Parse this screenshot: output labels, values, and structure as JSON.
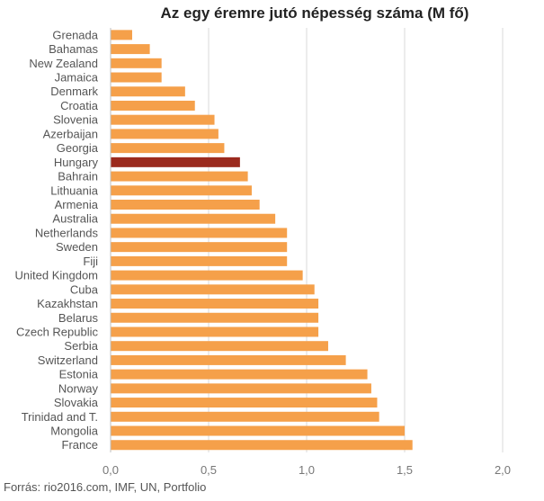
{
  "chart_data": {
    "type": "bar",
    "orientation": "horizontal",
    "title": "Az egy éremre jutó népesség száma (M fő)",
    "xlabel": "",
    "ylabel": "",
    "xlim": [
      0,
      2
    ],
    "x_ticks": [
      0,
      0.5,
      1,
      1.5,
      2
    ],
    "x_tick_labels": [
      "0,0",
      "0,5",
      "1,0",
      "1,5",
      "2,0"
    ],
    "grid": "vertical",
    "categories": [
      "Grenada",
      "Bahamas",
      "New Zealand",
      "Jamaica",
      "Denmark",
      "Croatia",
      "Slovenia",
      "Azerbaijan",
      "Georgia",
      "Hungary",
      "Bahrain",
      "Lithuania",
      "Armenia",
      "Australia",
      "Netherlands",
      "Sweden",
      "Fiji",
      "United Kingdom",
      "Cuba",
      "Kazakhstan",
      "Belarus",
      "Czech Republic",
      "Serbia",
      "Switzerland",
      "Estonia",
      "Norway",
      "Slovakia",
      "Trinidad and T.",
      "Mongolia",
      "France"
    ],
    "values": [
      0.11,
      0.2,
      0.26,
      0.26,
      0.38,
      0.43,
      0.53,
      0.55,
      0.58,
      0.66,
      0.7,
      0.72,
      0.76,
      0.84,
      0.9,
      0.9,
      0.9,
      0.98,
      1.04,
      1.06,
      1.06,
      1.06,
      1.11,
      1.2,
      1.31,
      1.33,
      1.36,
      1.37,
      1.5,
      1.54
    ],
    "highlight": "Hungary",
    "colors": {
      "bar": "#f5a04a",
      "highlight": "#9b2a1e",
      "grid": "#d9d9d9"
    }
  },
  "source": "Forrás: rio2016.com, IMF, UN, Portfolio"
}
